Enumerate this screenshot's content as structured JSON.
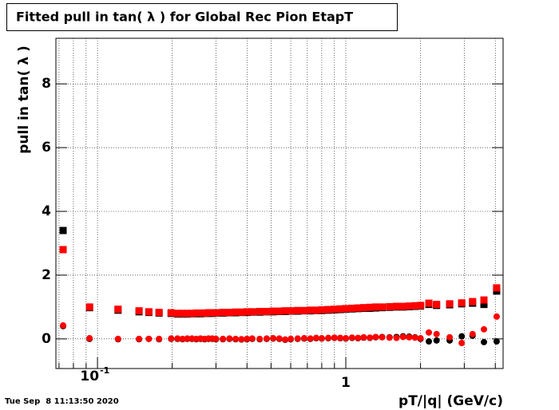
{
  "chart_data": {
    "type": "scatter",
    "title": "Fitted pull in tan( λ ) for Global Rec Pion EtapT",
    "y_label": "pull in tan( λ )",
    "x_label": "pT/|q| (GeV/c)",
    "timestamp": "Tue Sep  8 11:13:50 2020",
    "log_x": true,
    "grid": true,
    "xlim": [
      0.068,
      4.3
    ],
    "ylim": [
      -0.93,
      9.43
    ],
    "xticks": [
      {
        "value": 0.1,
        "label": "10",
        "exponent": "-1"
      },
      1
    ],
    "xminor": [
      0.07,
      0.08,
      0.09,
      0.2,
      0.3,
      0.4,
      0.5,
      0.6,
      0.7,
      0.8,
      0.9,
      2,
      3,
      4
    ],
    "yticks": [
      0,
      2,
      4,
      6,
      8
    ],
    "x": [
      0.0727,
      0.0929,
      0.121,
      0.147,
      0.161,
      0.177,
      0.198,
      0.21,
      0.22,
      0.23,
      0.24,
      0.25,
      0.26,
      0.27,
      0.28,
      0.29,
      0.3,
      0.32,
      0.34,
      0.36,
      0.38,
      0.4,
      0.42,
      0.45,
      0.48,
      0.51,
      0.54,
      0.57,
      0.6,
      0.64,
      0.68,
      0.72,
      0.76,
      0.8,
      0.85,
      0.9,
      0.95,
      1.0,
      1.06,
      1.12,
      1.18,
      1.25,
      1.32,
      1.4,
      1.5,
      1.6,
      1.7,
      1.8,
      1.9,
      2.0,
      2.16,
      2.32,
      2.62,
      2.93,
      3.24,
      3.6,
      4.05
    ],
    "series": [
      {
        "color": "#000000",
        "marker": "square",
        "values": [
          3.4,
          0.98,
          0.9,
          0.85,
          0.83,
          0.81,
          0.8,
          0.78,
          0.78,
          0.78,
          0.79,
          0.79,
          0.79,
          0.8,
          0.8,
          0.8,
          0.81,
          0.81,
          0.82,
          0.82,
          0.83,
          0.83,
          0.84,
          0.84,
          0.85,
          0.85,
          0.86,
          0.86,
          0.87,
          0.87,
          0.88,
          0.88,
          0.89,
          0.89,
          0.9,
          0.91,
          0.92,
          0.93,
          0.94,
          0.95,
          0.96,
          0.96,
          0.97,
          0.98,
          0.99,
          1.0,
          1.0,
          1.01,
          1.02,
          1.03,
          1.08,
          1.05,
          1.07,
          1.1,
          1.12,
          1.08,
          1.5
        ]
      },
      {
        "color": "#000000",
        "marker": "circle",
        "values": [
          0.4,
          0.0,
          -0.01,
          -0.01,
          0.0,
          -0.01,
          0.0,
          0.0,
          -0.01,
          0.0,
          0.0,
          -0.01,
          0.0,
          -0.01,
          0.0,
          0.0,
          -0.01,
          -0.01,
          0.0,
          -0.01,
          -0.02,
          -0.01,
          0.0,
          -0.01,
          0.0,
          0.01,
          0.0,
          -0.03,
          -0.01,
          0.0,
          0.01,
          0.0,
          0.02,
          0.01,
          0.02,
          0.03,
          0.02,
          0.01,
          0.03,
          0.02,
          0.04,
          0.03,
          0.05,
          0.06,
          0.05,
          0.06,
          0.08,
          0.07,
          0.05,
          0.0,
          -0.08,
          -0.05,
          -0.05,
          0.08,
          0.1,
          -0.1,
          -0.08
        ]
      },
      {
        "color": "#ff0000",
        "marker": "square",
        "values": [
          2.8,
          1.0,
          0.93,
          0.88,
          0.85,
          0.83,
          0.82,
          0.8,
          0.8,
          0.8,
          0.8,
          0.81,
          0.81,
          0.81,
          0.82,
          0.82,
          0.82,
          0.83,
          0.83,
          0.84,
          0.84,
          0.85,
          0.85,
          0.86,
          0.86,
          0.87,
          0.87,
          0.88,
          0.88,
          0.89,
          0.89,
          0.9,
          0.9,
          0.91,
          0.92,
          0.93,
          0.94,
          0.95,
          0.96,
          0.97,
          0.98,
          0.99,
          1.0,
          1.0,
          1.01,
          1.02,
          1.02,
          1.03,
          1.04,
          1.05,
          1.12,
          1.08,
          1.1,
          1.13,
          1.17,
          1.22,
          1.6
        ]
      },
      {
        "color": "#ff0000",
        "marker": "circle",
        "values": [
          0.42,
          0.02,
          0.0,
          0.0,
          0.0,
          0.0,
          0.01,
          0.01,
          0.0,
          0.01,
          0.01,
          0.0,
          0.01,
          0.0,
          0.01,
          0.01,
          0.0,
          0.0,
          0.01,
          0.0,
          -0.01,
          0.0,
          0.01,
          0.0,
          0.01,
          0.02,
          0.01,
          -0.02,
          0.0,
          0.01,
          0.02,
          0.01,
          0.03,
          0.02,
          0.03,
          0.04,
          0.03,
          0.02,
          0.04,
          0.03,
          0.05,
          0.04,
          0.06,
          0.05,
          0.04,
          0.03,
          0.06,
          0.05,
          0.04,
          0.02,
          0.2,
          0.15,
          0.05,
          -0.13,
          0.15,
          0.3,
          0.7
        ]
      }
    ]
  }
}
